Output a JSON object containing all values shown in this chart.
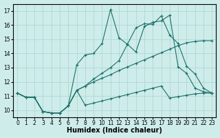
{
  "background_color": "#ceecea",
  "grid_color": "#aed8d4",
  "line_color": "#1a7068",
  "line_width": 0.8,
  "marker": "+",
  "marker_size": 3,
  "marker_edge_width": 0.8,
  "xlabel": "Humidex (Indice chaleur)",
  "xlabel_fontsize": 7,
  "xlabel_fontweight": "bold",
  "tick_fontsize": 5.5,
  "xlim": [
    -0.5,
    23.5
  ],
  "ylim": [
    9.5,
    17.5
  ],
  "yticks": [
    10,
    11,
    12,
    13,
    14,
    15,
    16,
    17
  ],
  "xticks": [
    0,
    1,
    2,
    3,
    4,
    5,
    6,
    7,
    8,
    9,
    10,
    11,
    12,
    13,
    14,
    15,
    16,
    17,
    18,
    19,
    20,
    21,
    22,
    23
  ],
  "series": [
    {
      "x": [
        0,
        1,
        2,
        3,
        4,
        5,
        6,
        7,
        8,
        9,
        10,
        11,
        12,
        13,
        14,
        15,
        16,
        17,
        18,
        19,
        20,
        21,
        22,
        23
      ],
      "y": [
        11.2,
        10.9,
        10.9,
        9.9,
        9.8,
        9.8,
        10.3,
        13.2,
        13.9,
        14.0,
        14.7,
        17.1,
        15.1,
        14.65,
        15.8,
        16.1,
        16.05,
        16.65,
        15.3,
        14.7,
        13.1,
        12.55,
        11.55,
        11.2
      ]
    },
    {
      "x": [
        0,
        1,
        2,
        3,
        4,
        5,
        6,
        7,
        8,
        9,
        10,
        11,
        12,
        13,
        14,
        15,
        16,
        17,
        18,
        19,
        20,
        21,
        22,
        23
      ],
      "y": [
        11.2,
        10.9,
        10.9,
        9.9,
        9.8,
        9.8,
        10.3,
        11.4,
        11.7,
        12.2,
        12.6,
        13.0,
        13.5,
        14.65,
        14.1,
        15.9,
        16.2,
        16.3,
        16.7,
        13.05,
        12.6,
        11.55,
        11.3,
        11.2
      ]
    },
    {
      "x": [
        0,
        1,
        2,
        3,
        4,
        5,
        6,
        7,
        8,
        9,
        10,
        11,
        12,
        13,
        14,
        15,
        16,
        17,
        18,
        19,
        20,
        21,
        22,
        23
      ],
      "y": [
        11.2,
        10.9,
        10.9,
        9.9,
        9.8,
        9.8,
        10.3,
        11.4,
        11.7,
        12.0,
        12.25,
        12.5,
        12.8,
        13.05,
        13.3,
        13.55,
        13.8,
        14.05,
        14.3,
        14.55,
        14.75,
        14.85,
        14.9,
        14.9
      ]
    },
    {
      "x": [
        0,
        1,
        2,
        3,
        4,
        5,
        6,
        7,
        8,
        9,
        10,
        11,
        12,
        13,
        14,
        15,
        16,
        17,
        18,
        19,
        20,
        21,
        22,
        23
      ],
      "y": [
        11.2,
        10.9,
        10.9,
        9.9,
        9.8,
        9.8,
        10.3,
        11.4,
        10.35,
        10.5,
        10.65,
        10.8,
        10.95,
        11.1,
        11.25,
        11.4,
        11.55,
        11.7,
        10.85,
        10.95,
        11.05,
        11.15,
        11.2,
        11.2
      ]
    }
  ]
}
